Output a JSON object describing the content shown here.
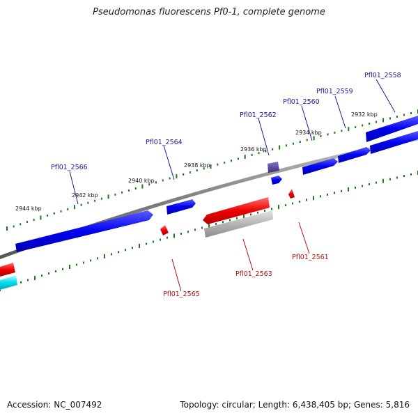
{
  "title": "Pseudomonas fluorescens Pf0-1, complete genome",
  "footer": {
    "accession": "Accession: NC_007492",
    "summary": "Topology: circular; Length: 6,438,405 bp; Genes: 5,816"
  },
  "ruler": {
    "ticks": [
      "2932 kbp",
      "2934 kbp",
      "2936 kbp",
      "2938 kbp",
      "2940 kbp",
      "2942 kbp",
      "2944 kbp"
    ]
  },
  "genes": {
    "forward": [
      "Pfl01_2558",
      "Pfl01_2559",
      "Pfl01_2560",
      "Pfl01_2562",
      "Pfl01_2564",
      "Pfl01_2566"
    ],
    "reverse": [
      "Pfl01_2561",
      "Pfl01_2563",
      "Pfl01_2565"
    ]
  },
  "colors": {
    "forward_gene": "#0000ee",
    "reverse_gene": "#ee0000",
    "pseudo_gene": "#aaaaaa",
    "selected_gene": "#4b3f8f",
    "rna_gene": "#00d8e8",
    "backbone": "#808080",
    "tick": "#1a7a1a",
    "forward_label": "#1a1aa0",
    "reverse_label": "#b01010"
  }
}
